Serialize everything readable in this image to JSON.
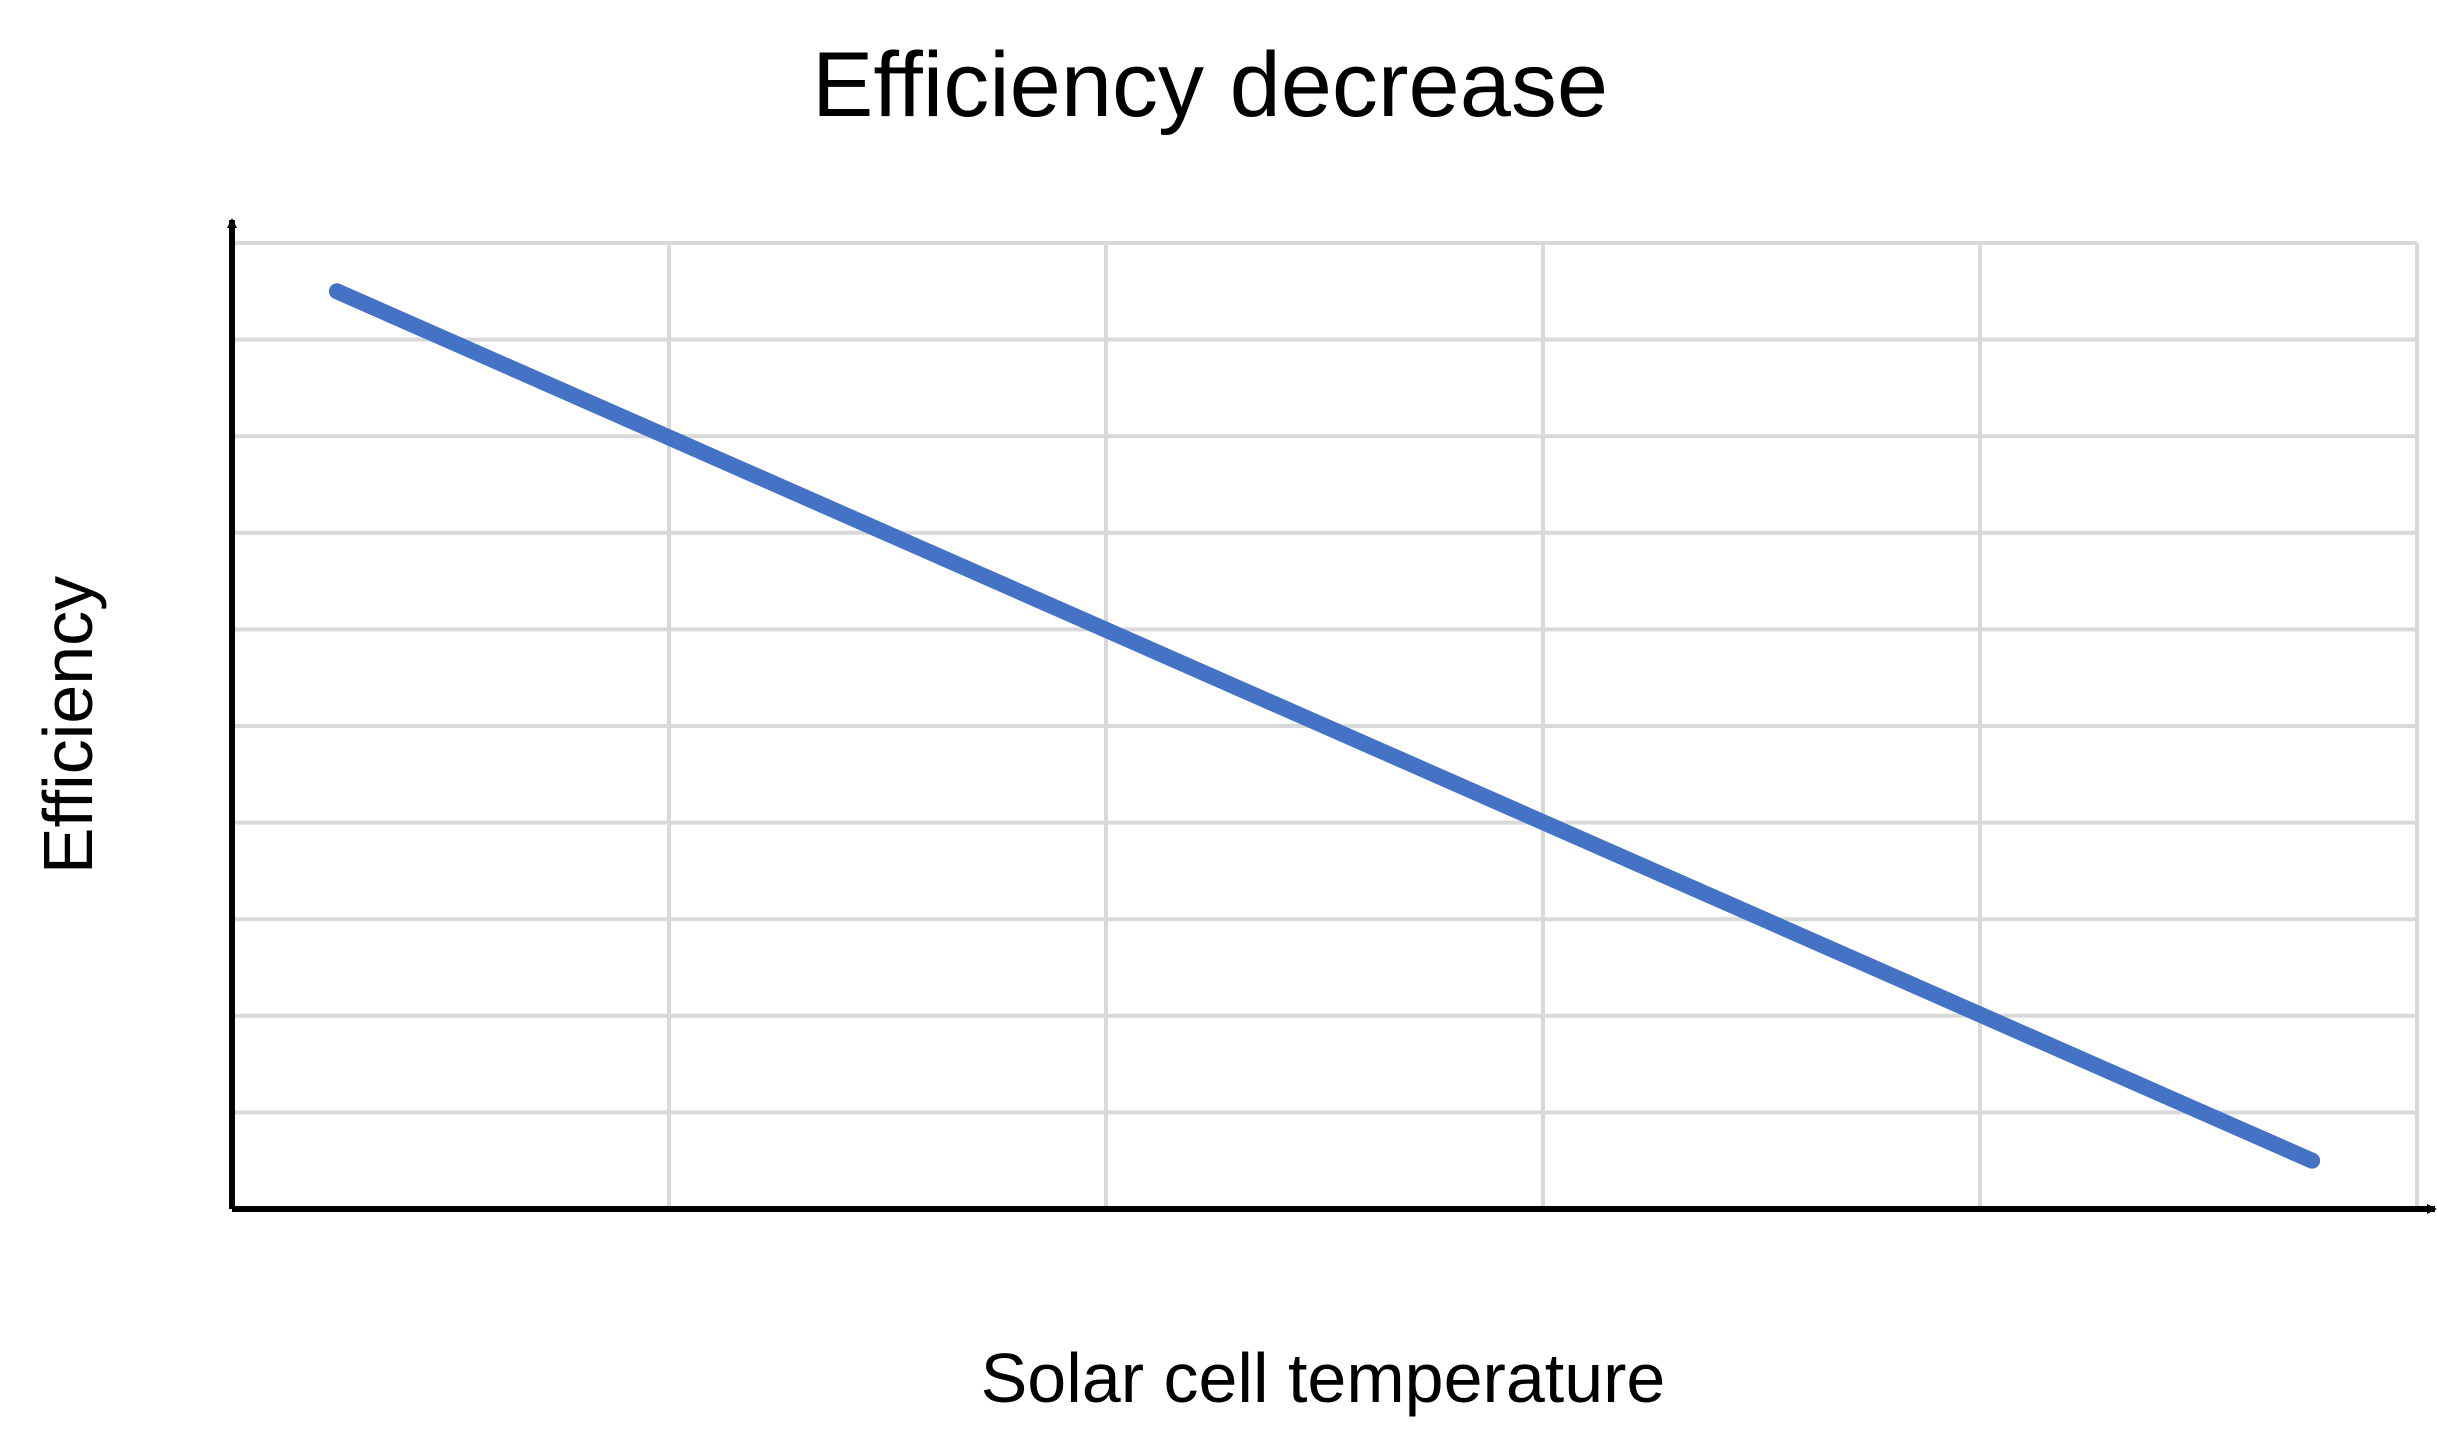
{
  "chart_data": {
    "type": "line",
    "title": "Efficiency decrease",
    "xlabel": "Solar cell temperature",
    "ylabel": "Efficiency",
    "x": [
      0.24,
      4.76
    ],
    "series": [
      {
        "name": "Efficiency",
        "values": [
          9.5,
          0.5
        ]
      }
    ],
    "xlim": [
      0,
      5
    ],
    "ylim": [
      0,
      10
    ],
    "x_gridlines": [
      1,
      2,
      3,
      4,
      5
    ],
    "y_gridlines": [
      1,
      2,
      3,
      4,
      5,
      6,
      7,
      8,
      9,
      10
    ],
    "grid": true,
    "legend": "none",
    "colors": {
      "line": "#4472C4",
      "grid": "#D9D9D9",
      "axis": "#000000"
    }
  }
}
